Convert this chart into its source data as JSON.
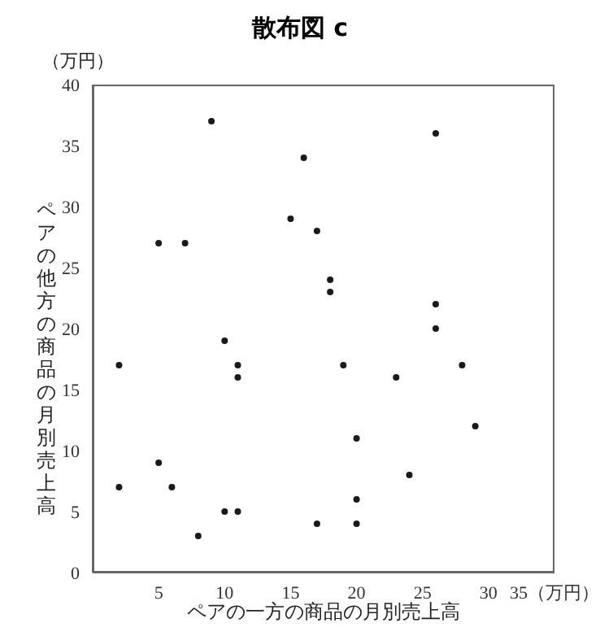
{
  "chart_data": {
    "type": "scatter",
    "title": "散布図 c",
    "xlabel": "ペアの一方の商品の月別売上高",
    "ylabel": "ペアの他方の商品の月別売上高",
    "annotations": [
      "（万円）"
    ],
    "x": [
      2,
      2,
      5,
      5,
      6,
      7,
      8,
      9,
      10,
      10,
      11,
      11,
      11,
      15,
      16,
      17,
      17,
      18,
      18,
      19,
      20,
      20,
      20,
      23,
      24,
      26,
      26,
      26,
      28,
      29
    ],
    "series": [
      {
        "color": "#1a1a1a",
        "values": [
          17,
          7,
          27,
          9,
          7,
          27,
          3,
          37,
          19,
          5,
          17,
          16,
          5,
          29,
          34,
          28,
          4,
          24,
          23,
          17,
          11,
          6,
          4,
          16,
          8,
          36,
          22,
          20,
          17,
          12
        ]
      }
    ],
    "xlim": [
      0,
      35
    ],
    "xticks": [
      5,
      10,
      15,
      20,
      25,
      30,
      {
        "value": 35,
        "label": "35（万円）"
      }
    ],
    "ylim": [
      0,
      40
    ],
    "yticks": [
      0,
      5,
      10,
      15,
      20,
      25,
      30,
      35,
      40
    ],
    "grid": false,
    "legend": false,
    "marker": "circle"
  }
}
